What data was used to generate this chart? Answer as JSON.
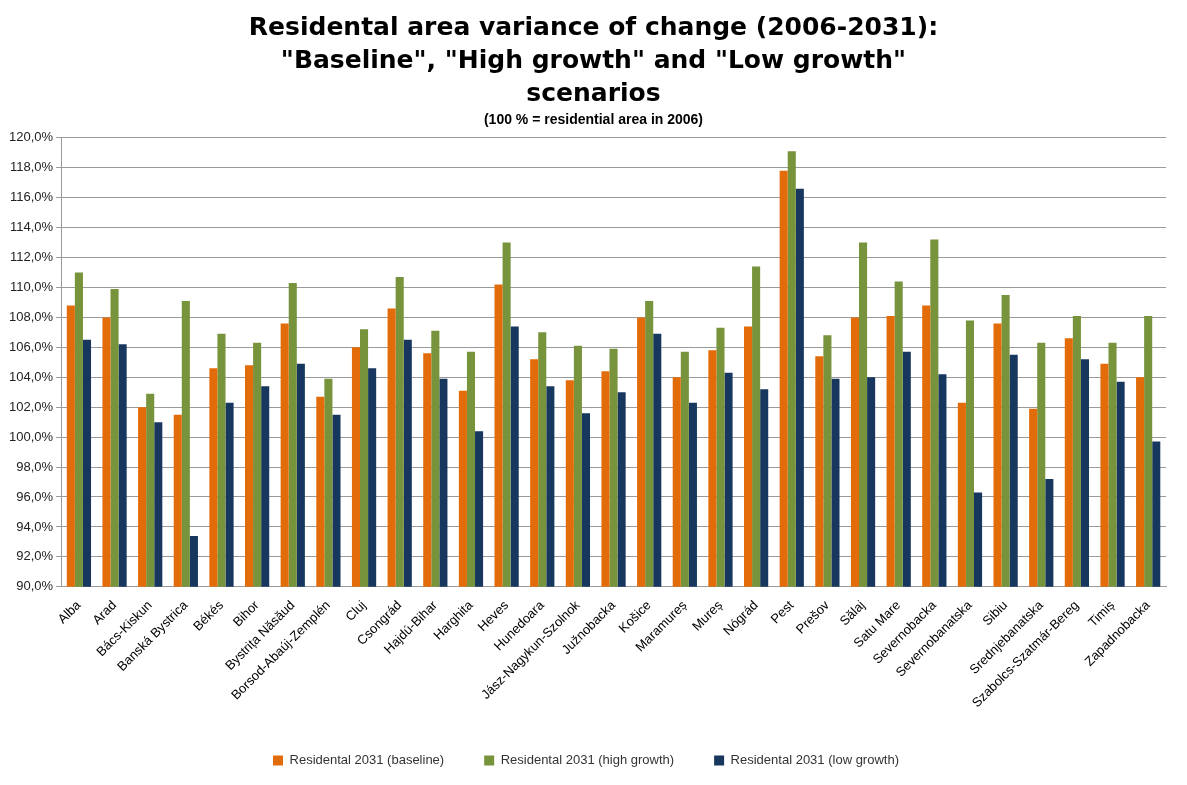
{
  "chart_data": {
    "type": "bar",
    "title": "Residental area variance of change (2006-2031): \"Baseline\", \"High growth\" and \"Low growth\" scenarios",
    "subtitle": "(100 % = residential area in 2006)",
    "categories": [
      "Alba",
      "Arad",
      "Bács-Kiskun",
      "Banská Bystrica",
      "Békés",
      "Bihor",
      "Bystrița Năsăud",
      "Borsod-Abaúj-Zemplén",
      "Cluj",
      "Csongrád",
      "Hajdú-Bihar",
      "Harghita",
      "Heves",
      "Hunedoara",
      "Jász-Nagykun-Szolnok",
      "Južnobacka",
      "Košice",
      "Maramureș",
      "Mureș",
      "Nógrád",
      "Pest",
      "Prešov",
      "Sălaj",
      "Satu Mare",
      "Severnobacka",
      "Severnobanatska",
      "Sibiu",
      "Srednjebanatska",
      "Szabolcs-Szatmár-Bereg",
      "Timiș",
      "Zapadnobacka"
    ],
    "series": [
      {
        "name": "Residental 2031 (baseline)",
        "color": "#e36c0a",
        "values": [
          108.8,
          108.0,
          102.0,
          101.5,
          104.6,
          104.8,
          107.6,
          102.7,
          106.0,
          108.6,
          105.6,
          103.1,
          110.2,
          105.2,
          103.8,
          104.4,
          108.0,
          104.0,
          105.8,
          107.4,
          117.8,
          105.4,
          108.0,
          108.1,
          108.8,
          102.3,
          107.6,
          101.9,
          106.6,
          104.9,
          104.0
        ]
      },
      {
        "name": "Residental 2031 (high growth)",
        "color": "#77933c",
        "values": [
          111.0,
          109.9,
          102.9,
          109.1,
          106.9,
          106.3,
          110.3,
          103.9,
          107.2,
          110.7,
          107.1,
          105.7,
          113.0,
          107.0,
          106.1,
          105.9,
          109.1,
          105.7,
          107.3,
          111.4,
          119.1,
          106.8,
          113.0,
          110.4,
          113.2,
          107.8,
          109.5,
          106.3,
          108.1,
          106.3,
          108.1
        ]
      },
      {
        "name": "Residental 2031 (low growth)",
        "color": "#17375e",
        "values": [
          106.5,
          106.2,
          101.0,
          93.4,
          102.3,
          103.4,
          104.9,
          101.5,
          104.6,
          106.5,
          103.9,
          100.4,
          107.4,
          103.4,
          101.6,
          103.0,
          106.9,
          102.3,
          104.3,
          103.2,
          116.6,
          103.9,
          104.0,
          105.7,
          104.2,
          96.3,
          105.5,
          97.2,
          105.2,
          103.7,
          99.7
        ]
      }
    ],
    "ylim": [
      90,
      120
    ],
    "yticks": [
      {
        "value": 90,
        "label": "90,0%"
      },
      {
        "value": 92,
        "label": "92,0%"
      },
      {
        "value": 94,
        "label": "94,0%"
      },
      {
        "value": 96,
        "label": "96,0%"
      },
      {
        "value": 98,
        "label": "98,0%"
      },
      {
        "value": 100,
        "label": "100,0%"
      },
      {
        "value": 102,
        "label": "102,0%"
      },
      {
        "value": 104,
        "label": "104,0%"
      },
      {
        "value": 106,
        "label": "106,0%"
      },
      {
        "value": 108,
        "label": "108,0%"
      },
      {
        "value": 110,
        "label": "110,0%"
      },
      {
        "value": 112,
        "label": "112,0%"
      },
      {
        "value": 114,
        "label": "114,0%"
      },
      {
        "value": 116,
        "label": "116,0%"
      },
      {
        "value": 118,
        "label": "118,0%"
      },
      {
        "value": 120,
        "label": "120,0%"
      }
    ],
    "grid": "y",
    "legend": "bottom"
  }
}
